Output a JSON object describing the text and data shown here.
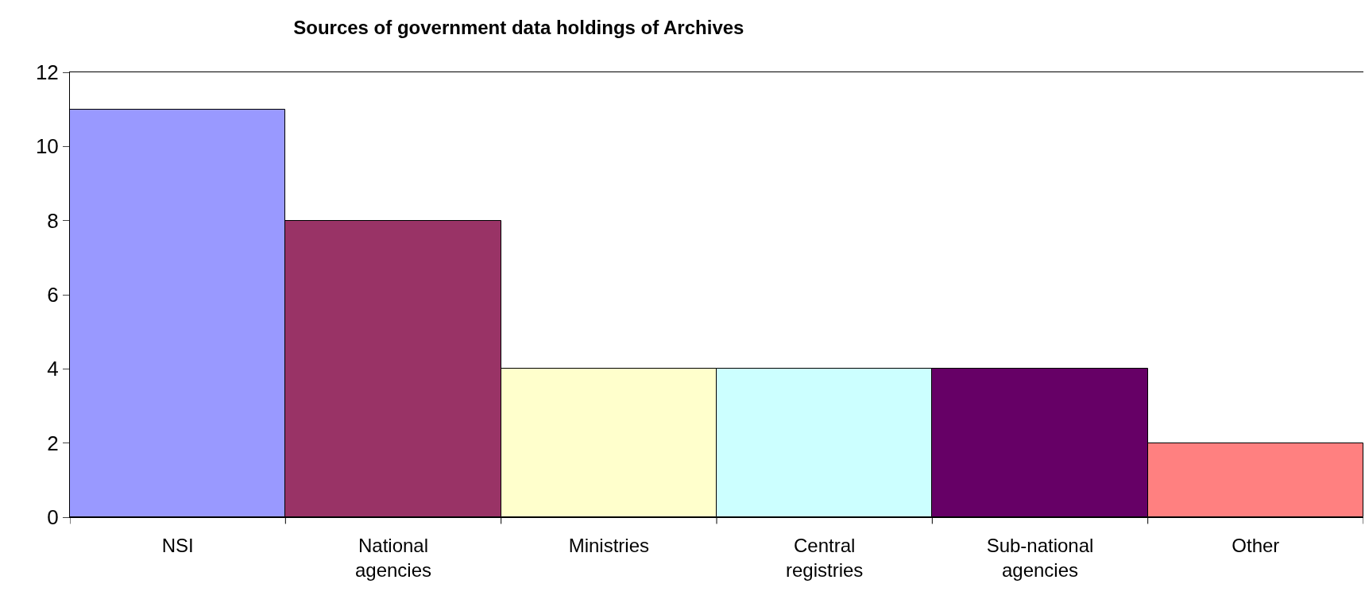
{
  "chart_data": {
    "type": "bar",
    "title": "Sources of government data holdings of Archives",
    "categories": [
      "NSI",
      "National agencies",
      "Ministries",
      "Central registries",
      "Sub-national agencies",
      "Other"
    ],
    "values": [
      11,
      8,
      4,
      4,
      4,
      2
    ],
    "colors": [
      "#9999ff",
      "#993366",
      "#ffffcc",
      "#ccffff",
      "#660066",
      "#ff8080"
    ],
    "ylim": [
      0,
      12
    ],
    "yticks": [
      0,
      2,
      4,
      6,
      8,
      10,
      12
    ]
  }
}
